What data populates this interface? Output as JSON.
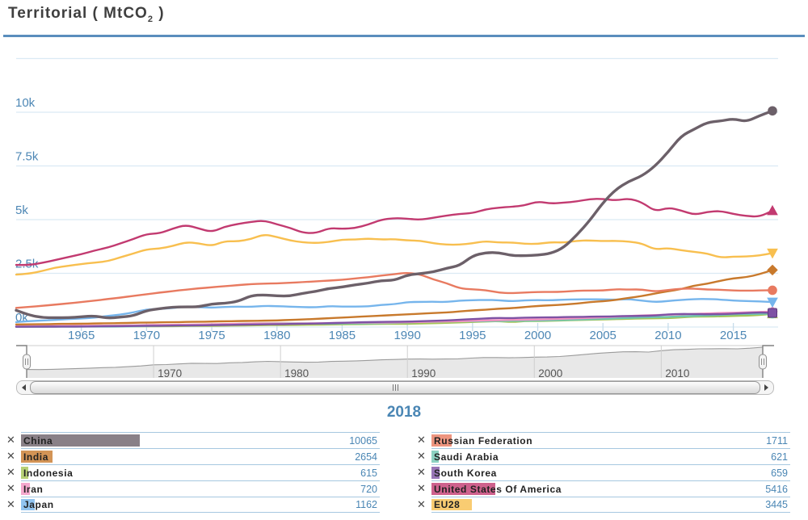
{
  "header": {
    "title_prefix": "Territorial ( MtCO",
    "title_sub": "2",
    "title_suffix": " )"
  },
  "current_year": "2018",
  "colors": {
    "axis_label": "#4d87b5",
    "grid": "#daeaf4",
    "tick": "#c6dcea",
    "title_rule": "#5a8ebd",
    "nav_area_fill": "#e8e8e8",
    "nav_area_stroke": "#9b9b9b",
    "nav_grid": "#cfcfcf",
    "nav_label": "#555555",
    "nav_outline_light": "#cccccc",
    "nav_outline_dark": "#808080",
    "legend_border": "#a6c8e0",
    "value_blue": "#4a86b4"
  },
  "chart_data": {
    "type": "line",
    "title": "Territorial ( MtCO2 )",
    "ylabel": "MtCO2",
    "x_start": 1960,
    "x_end": 2018,
    "ylim": [
      0,
      12500
    ],
    "grid": true,
    "yticks": [
      {
        "v": 0,
        "label": "0k"
      },
      {
        "v": 2500,
        "label": "2.5k"
      },
      {
        "v": 5000,
        "label": "5k"
      },
      {
        "v": 7500,
        "label": "7.5k"
      },
      {
        "v": 10000,
        "label": "10k"
      },
      {
        "v": 12500,
        "label": ""
      }
    ],
    "xticks": [
      1965,
      1970,
      1975,
      1980,
      1985,
      1990,
      1995,
      2000,
      2005,
      2010,
      2015
    ],
    "series": [
      {
        "name": "Indonesia",
        "color": "#a5c454",
        "marker": "triangle",
        "values": [
          20,
          21,
          23,
          25,
          27,
          29,
          31,
          34,
          37,
          40,
          35,
          38,
          42,
          47,
          52,
          58,
          64,
          71,
          79,
          85,
          90,
          96,
          102,
          109,
          116,
          124,
          132,
          140,
          145,
          148,
          150,
          165,
          180,
          195,
          215,
          235,
          255,
          275,
          230,
          280,
          280,
          295,
          310,
          325,
          340,
          355,
          370,
          385,
          400,
          405,
          410,
          450,
          480,
          490,
          500,
          510,
          530,
          560,
          615
        ]
      },
      {
        "name": "Saudi Arabia",
        "color": "#6fc5b1",
        "marker": "circle",
        "values": [
          10,
          11,
          12,
          14,
          16,
          18,
          21,
          24,
          28,
          33,
          50,
          60,
          72,
          86,
          100,
          115,
          130,
          145,
          160,
          170,
          180,
          175,
          168,
          162,
          158,
          160,
          165,
          172,
          180,
          195,
          210,
          230,
          245,
          255,
          262,
          268,
          275,
          282,
          288,
          295,
          300,
          315,
          330,
          345,
          365,
          385,
          405,
          425,
          450,
          460,
          470,
          495,
          520,
          540,
          560,
          590,
          600,
          610,
          621
        ]
      },
      {
        "name": "Iran",
        "color": "#f392c0",
        "marker": "diamond",
        "values": [
          40,
          43,
          46,
          49,
          52,
          56,
          60,
          64,
          69,
          74,
          90,
          97,
          104,
          112,
          120,
          129,
          139,
          149,
          160,
          166,
          170,
          160,
          165,
          172,
          180,
          190,
          200,
          205,
          210,
          215,
          220,
          235,
          250,
          262,
          275,
          290,
          305,
          320,
          335,
          342,
          350,
          370,
          390,
          410,
          430,
          450,
          480,
          510,
          540,
          555,
          570,
          590,
          610,
          630,
          650,
          660,
          680,
          700,
          720
        ]
      },
      {
        "name": "South Korea",
        "color": "#7e52a4",
        "marker": "square",
        "values": [
          13,
          15,
          17,
          20,
          23,
          27,
          31,
          36,
          42,
          48,
          55,
          60,
          66,
          73,
          80,
          88,
          97,
          107,
          118,
          125,
          130,
          140,
          152,
          165,
          180,
          195,
          210,
          228,
          240,
          245,
          250,
          270,
          290,
          310,
          340,
          370,
          400,
          430,
          410,
          440,
          440,
          450,
          460,
          470,
          480,
          490,
          500,
          510,
          520,
          530,
          590,
          610,
          600,
          590,
          600,
          620,
          650,
          680,
          659
        ]
      },
      {
        "name": "Japan",
        "color": "#76b5ec",
        "marker": "triangle-down",
        "values": [
          230,
          280,
          300,
          330,
          370,
          400,
          440,
          510,
          580,
          680,
          820,
          840,
          880,
          950,
          930,
          900,
          940,
          950,
          940,
          980,
          970,
          950,
          920,
          920,
          970,
          950,
          950,
          960,
          1030,
          1060,
          1160,
          1170,
          1180,
          1160,
          1230,
          1250,
          1260,
          1250,
          1200,
          1240,
          1260,
          1240,
          1280,
          1290,
          1290,
          1290,
          1270,
          1300,
          1230,
          1160,
          1210,
          1260,
          1300,
          1310,
          1280,
          1230,
          1210,
          1190,
          1162
        ]
      },
      {
        "name": "India",
        "color": "#c8792c",
        "marker": "diamond",
        "values": [
          120,
          125,
          133,
          141,
          148,
          156,
          165,
          174,
          184,
          194,
          205,
          216,
          228,
          233,
          244,
          255,
          266,
          277,
          288,
          295,
          305,
          330,
          355,
          380,
          410,
          440,
          470,
          500,
          530,
          560,
          590,
          620,
          650,
          680,
          720,
          770,
          810,
          850,
          880,
          930,
          980,
          1010,
          1040,
          1090,
          1160,
          1200,
          1260,
          1360,
          1440,
          1560,
          1670,
          1760,
          1930,
          2010,
          2150,
          2270,
          2320,
          2460,
          2654
        ]
      },
      {
        "name": "Russian Federation",
        "color": "#e87a60",
        "marker": "circle",
        "values": [
          890,
          940,
          990,
          1040,
          1100,
          1160,
          1230,
          1300,
          1370,
          1450,
          1530,
          1600,
          1670,
          1740,
          1800,
          1850,
          1900,
          1950,
          2000,
          2020,
          2030,
          2060,
          2090,
          2130,
          2160,
          2200,
          2260,
          2320,
          2400,
          2460,
          2530,
          2450,
          2210,
          2040,
          1800,
          1750,
          1720,
          1600,
          1570,
          1610,
          1630,
          1630,
          1640,
          1690,
          1700,
          1700,
          1760,
          1740,
          1750,
          1650,
          1720,
          1790,
          1790,
          1740,
          1740,
          1700,
          1690,
          1700,
          1711
        ]
      },
      {
        "name": "EU28",
        "color": "#f8bf4f",
        "marker": "triangle-down",
        "values": [
          2440,
          2480,
          2610,
          2770,
          2850,
          2930,
          3000,
          3060,
          3250,
          3420,
          3620,
          3650,
          3770,
          3950,
          3900,
          3770,
          4000,
          3980,
          4090,
          4320,
          4190,
          4030,
          3940,
          3910,
          3960,
          4070,
          4070,
          4120,
          4070,
          4090,
          4030,
          4020,
          3900,
          3830,
          3830,
          3900,
          4000,
          3930,
          3940,
          3870,
          3870,
          3950,
          3930,
          4020,
          4030,
          4000,
          4010,
          3980,
          3890,
          3600,
          3680,
          3570,
          3500,
          3430,
          3230,
          3280,
          3280,
          3330,
          3445
        ]
      },
      {
        "name": "United States Of America",
        "color": "#c23a70",
        "marker": "triangle",
        "values": [
          2890,
          2880,
          2987,
          3119,
          3255,
          3390,
          3561,
          3695,
          3890,
          4097,
          4330,
          4356,
          4584,
          4757,
          4589,
          4420,
          4673,
          4796,
          4896,
          4961,
          4778,
          4619,
          4380,
          4373,
          4607,
          4570,
          4607,
          4771,
          4995,
          5074,
          5040,
          4992,
          5088,
          5188,
          5266,
          5300,
          5480,
          5557,
          5597,
          5662,
          5850,
          5750,
          5790,
          5847,
          5960,
          5970,
          5890,
          5990,
          5810,
          5380,
          5560,
          5430,
          5220,
          5360,
          5410,
          5260,
          5170,
          5130,
          5416
        ]
      },
      {
        "name": "China",
        "color": "#6c6069",
        "marker": "circle",
        "values": [
          779,
          552,
          440,
          436,
          437,
          476,
          523,
          410,
          461,
          523,
          772,
          859,
          925,
          939,
          936,
          1080,
          1102,
          1189,
          1459,
          1499,
          1448,
          1441,
          1571,
          1657,
          1802,
          1858,
          1968,
          2041,
          2165,
          2173,
          2420,
          2488,
          2565,
          2738,
          2855,
          3320,
          3463,
          3469,
          3324,
          3318,
          3349,
          3426,
          3694,
          4281,
          4967,
          5790,
          6414,
          6791,
          7035,
          7492,
          8145,
          8900,
          9205,
          9530,
          9590,
          9700,
          9555,
          9839,
          10065
        ]
      }
    ]
  },
  "navigator": {
    "decade_labels": [
      1970,
      1980,
      1990,
      2000,
      2010
    ]
  },
  "legend": {
    "remove_icon": "✕",
    "columns": [
      [
        {
          "name": "China",
          "value": 10065,
          "color": "#6c6069"
        },
        {
          "name": "India",
          "value": 2654,
          "color": "#c8792c"
        },
        {
          "name": "Indonesia",
          "value": 615,
          "color": "#a5c454"
        },
        {
          "name": "Iran",
          "value": 720,
          "color": "#f392c0"
        },
        {
          "name": "Japan",
          "value": 1162,
          "color": "#76b5ec"
        }
      ],
      [
        {
          "name": "Russian Federation",
          "value": 1711,
          "color": "#e87a60"
        },
        {
          "name": "Saudi Arabia",
          "value": 621,
          "color": "#6fc5b1"
        },
        {
          "name": "South Korea",
          "value": 659,
          "color": "#7e52a4"
        },
        {
          "name": "United States Of America",
          "value": 5416,
          "color": "#c23a70"
        },
        {
          "name": "EU28",
          "value": 3445,
          "color": "#f8bf4f"
        }
      ]
    ]
  }
}
